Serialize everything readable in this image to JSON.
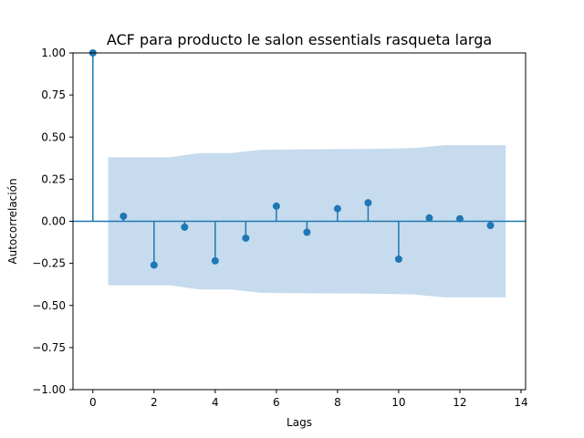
{
  "chart_data": {
    "type": "stem",
    "title": "ACF para producto le salon essentials rasqueta larga",
    "xlabel": "Lags",
    "ylabel": "Autocorrelación",
    "xlim": [
      -0.65,
      14.15
    ],
    "ylim": [
      -1.0,
      1.0
    ],
    "xticks": [
      0,
      2,
      4,
      6,
      8,
      10,
      12,
      14
    ],
    "yticks": [
      -1.0,
      -0.75,
      -0.5,
      -0.25,
      0.0,
      0.25,
      0.5,
      0.75,
      1.0
    ],
    "ytick_labels": [
      "−1.00",
      "−0.75",
      "−0.50",
      "−0.25",
      "0.00",
      "0.25",
      "0.50",
      "0.75",
      "1.00"
    ],
    "grid": false,
    "series": [
      {
        "lags": [
          0,
          1,
          2,
          3,
          4,
          5,
          6,
          7,
          8,
          9,
          10,
          11,
          12,
          13
        ],
        "values": [
          1.0,
          0.03,
          -0.26,
          -0.035,
          -0.235,
          -0.1,
          0.09,
          -0.065,
          0.075,
          0.11,
          -0.225,
          0.02,
          0.015,
          -0.025
        ]
      }
    ],
    "confidence_band": {
      "x": [
        0.5,
        1.5,
        2.5,
        3.5,
        4.5,
        5.5,
        6.5,
        7.5,
        8.5,
        9.5,
        10.5,
        11.5,
        12.5,
        13.5
      ],
      "upper": [
        0.38,
        0.38,
        0.38,
        0.405,
        0.405,
        0.425,
        0.427,
        0.428,
        0.429,
        0.431,
        0.435,
        0.452,
        0.452,
        0.452
      ]
    },
    "colors": {
      "stem": "#1f77b4",
      "band": "#c6dbed",
      "baseline": "#1f77b4"
    }
  }
}
